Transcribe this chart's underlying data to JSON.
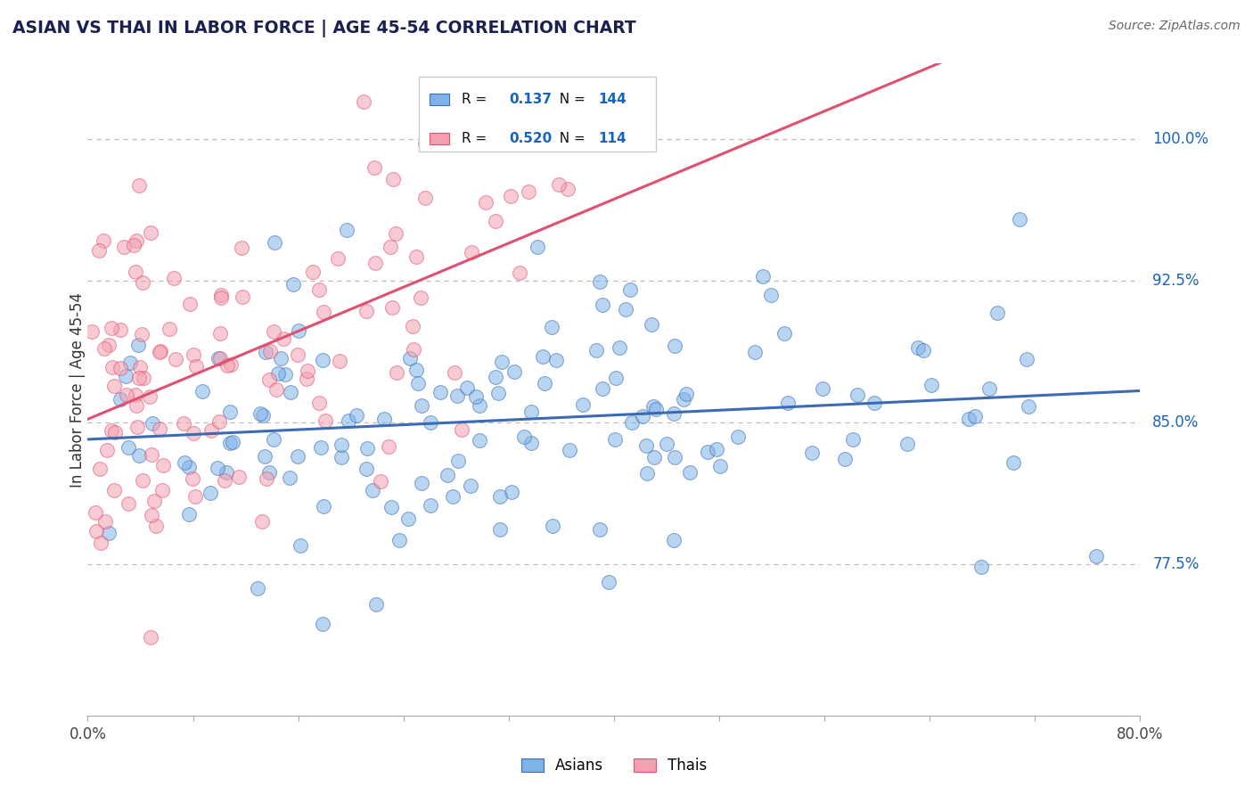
{
  "title": "ASIAN VS THAI IN LABOR FORCE | AGE 45-54 CORRELATION CHART",
  "source": "Source: ZipAtlas.com",
  "ylabel": "In Labor Force | Age 45-54",
  "xlim": [
    0.0,
    0.8
  ],
  "ylim": [
    0.695,
    1.04
  ],
  "yticks": [
    0.775,
    0.85,
    0.925,
    1.0
  ],
  "ytick_labels": [
    "77.5%",
    "85.0%",
    "92.5%",
    "100.0%"
  ],
  "xtick_vals": [
    0.0,
    0.08,
    0.16,
    0.24,
    0.32,
    0.4,
    0.48,
    0.56,
    0.64,
    0.72,
    0.8
  ],
  "asian_color": "#7EB3E8",
  "thai_color": "#F4A0B0",
  "asian_line_color": "#3B6BB5",
  "thai_line_color": "#E05070",
  "asian_R": 0.137,
  "asian_N": 144,
  "thai_R": 0.52,
  "thai_N": 114,
  "R_text_color": "#000000",
  "N_val_color": "#1565C0",
  "background_color": "#FFFFFF",
  "grid_color": "#BBBBBB",
  "title_color": "#1a2050",
  "source_color": "#666666"
}
